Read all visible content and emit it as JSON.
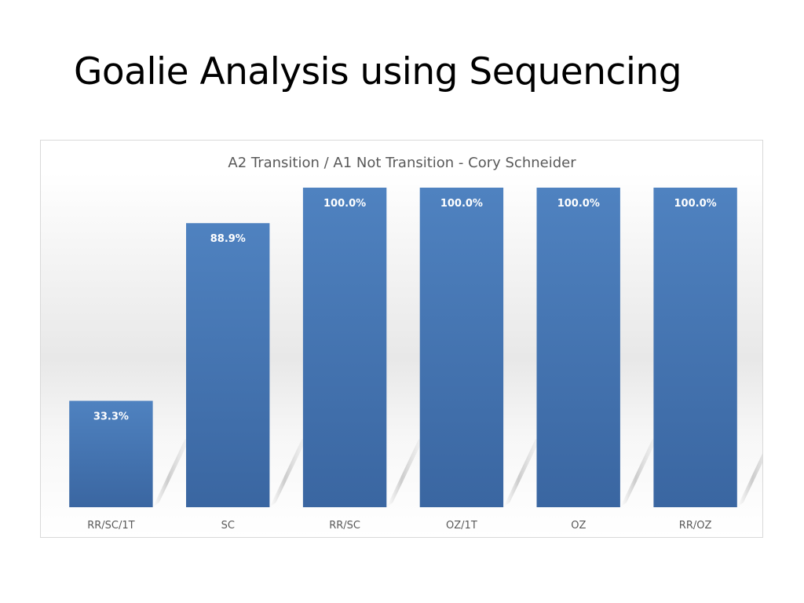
{
  "slide": {
    "title": "Goalie Analysis using Sequencing"
  },
  "chart_data": {
    "type": "bar",
    "title": "A2 Transition / A1 Not Transition - Cory Schneider",
    "categories": [
      "RR/SC/1T",
      "SC",
      "RR/SC",
      "OZ/1T",
      "OZ",
      "RR/OZ"
    ],
    "values": [
      33.3,
      88.9,
      100.0,
      100.0,
      100.0,
      100.0
    ],
    "data_labels": [
      "33.3%",
      "88.9%",
      "100.0%",
      "100.0%",
      "100.0%",
      "100.0%"
    ],
    "ylim": [
      0,
      100
    ],
    "grid": false,
    "legend": "none",
    "xlabel": "",
    "ylabel": "",
    "bar_color": "#4a7ebb",
    "bar_color_dark": "#3b67a0"
  }
}
